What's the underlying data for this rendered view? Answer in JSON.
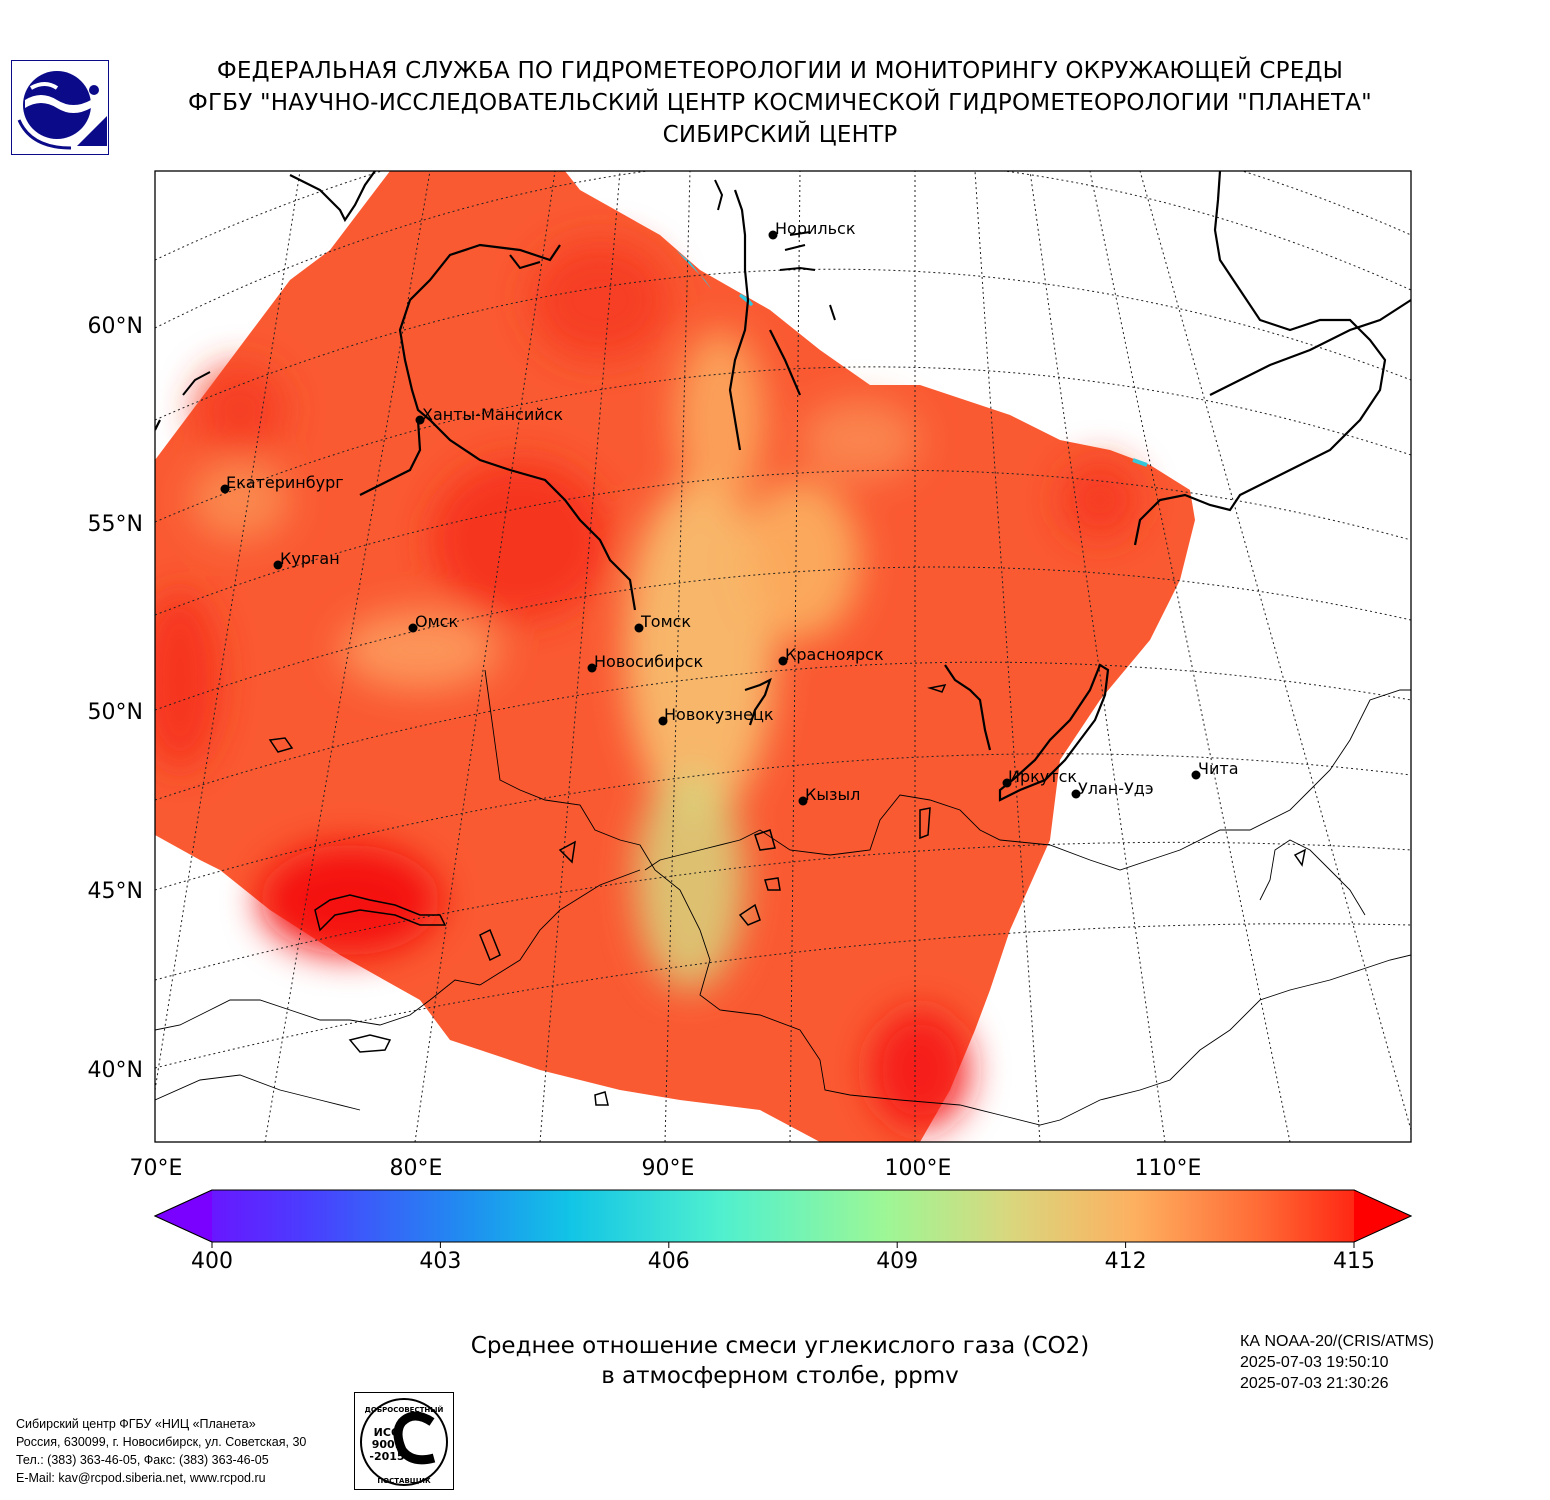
{
  "header": {
    "line1": "ФЕДЕРАЛЬНАЯ СЛУЖБА ПО ГИДРОМЕТЕОРОЛОГИИ И МОНИТОРИНГУ ОКРУЖАЮЩЕЙ СРЕДЫ",
    "line2": "ФГБУ \"НАУЧНО-ИССЛЕДОВАТЕЛЬСКИЙ ЦЕНТР КОСМИЧЕСКОЙ ГИДРОМЕТЕОРОЛОГИИ \"ПЛАНЕТА\"",
    "line3": "СИБИРСКИЙ ЦЕНТР"
  },
  "map": {
    "lat_labels": [
      "60°N",
      "55°N",
      "50°N",
      "45°N",
      "40°N"
    ],
    "lon_labels": [
      "70°E",
      "80°E",
      "90°E",
      "100°E",
      "110°E"
    ],
    "cities": [
      {
        "name": "Норильск"
      },
      {
        "name": "Ханты-Мансийск"
      },
      {
        "name": "Екатеринбург"
      },
      {
        "name": "Курган"
      },
      {
        "name": "Омск"
      },
      {
        "name": "Томск"
      },
      {
        "name": "Новосибирск"
      },
      {
        "name": "Красноярск"
      },
      {
        "name": "Новокузнецк"
      },
      {
        "name": "Иркутск"
      },
      {
        "name": "Улан-Удэ"
      },
      {
        "name": "Чита"
      },
      {
        "name": "Кызыл"
      }
    ]
  },
  "colorbar": {
    "ticks": [
      "400",
      "403",
      "406",
      "409",
      "412",
      "415"
    ],
    "min": 400,
    "max": 415,
    "colors": [
      "#7a00ff",
      "#4b3dff",
      "#1aa3ee",
      "#38e6d6",
      "#8cf59c",
      "#d9d77e",
      "#fdb060",
      "#ff6a35",
      "#ff0000"
    ]
  },
  "caption": {
    "line1": "Среднее отношение смеси углекислого газа (CO2)",
    "line2": "в атмосферном столбе, ppmv"
  },
  "satellite": {
    "line1": "КА NOAA-20/(CRIS/ATMS)",
    "line2": "2025-07-03 19:50:10",
    "line3": "2025-07-03 21:30:26"
  },
  "contact": {
    "line1": "Сибирский центр ФГБУ «НИЦ «Планета»",
    "line2": "Россия, 630099, г. Новосибирск, ул. Советская, 30",
    "line3": "Тел.: (383) 363-46-05, Факс: (383) 363-46-05",
    "line4": "E-Mail: kav@rcpod.siberia.net, www.rcpod.ru"
  },
  "stamp": {
    "top": "ДОБРОСОВЕСТНЫЙ",
    "iso1": "ИСО",
    "iso2": "9001",
    "iso3": "-2015",
    "bottom": "ПОСТАВЩИК"
  }
}
